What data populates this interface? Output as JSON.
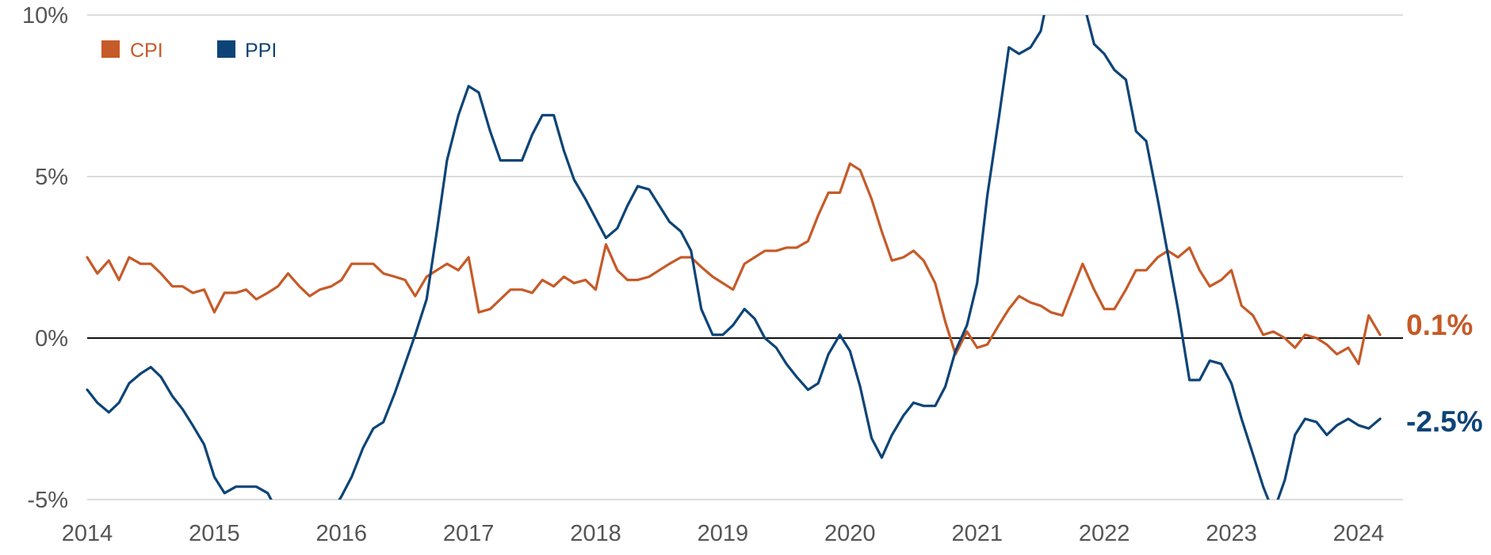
{
  "chart_data": {
    "type": "line",
    "title": "",
    "xlabel": "",
    "ylabel": "",
    "xlim": [
      2014,
      2024.35
    ],
    "ylim": [
      -5,
      10
    ],
    "grid": true,
    "legend_position": "top-left",
    "x_ticks": [
      {
        "value": 2014,
        "label": "2014"
      },
      {
        "value": 2015,
        "label": "2015"
      },
      {
        "value": 2016,
        "label": "2016"
      },
      {
        "value": 2017,
        "label": "2017"
      },
      {
        "value": 2018,
        "label": "2018"
      },
      {
        "value": 2019,
        "label": "2019"
      },
      {
        "value": 2020,
        "label": "2020"
      },
      {
        "value": 2021,
        "label": "2021"
      },
      {
        "value": 2022,
        "label": "2022"
      },
      {
        "value": 2023,
        "label": "2023"
      },
      {
        "value": 2024,
        "label": "2024"
      }
    ],
    "y_ticks": [
      {
        "value": 10,
        "label": "10%"
      },
      {
        "value": 5,
        "label": "5%"
      },
      {
        "value": 0,
        "label": "0%"
      },
      {
        "value": -5,
        "label": "-5%"
      }
    ],
    "series": [
      {
        "name": "CPI",
        "color": "#C65A28",
        "end_label": "0.1%",
        "points": [
          [
            2014.0,
            2.5
          ],
          [
            2014.08,
            2.0
          ],
          [
            2014.17,
            2.4
          ],
          [
            2014.25,
            1.8
          ],
          [
            2014.33,
            2.5
          ],
          [
            2014.42,
            2.3
          ],
          [
            2014.5,
            2.3
          ],
          [
            2014.58,
            2.0
          ],
          [
            2014.67,
            1.6
          ],
          [
            2014.75,
            1.6
          ],
          [
            2014.83,
            1.4
          ],
          [
            2014.92,
            1.5
          ],
          [
            2015.0,
            0.8
          ],
          [
            2015.08,
            1.4
          ],
          [
            2015.17,
            1.4
          ],
          [
            2015.25,
            1.5
          ],
          [
            2015.33,
            1.2
          ],
          [
            2015.42,
            1.4
          ],
          [
            2015.5,
            1.6
          ],
          [
            2015.58,
            2.0
          ],
          [
            2015.67,
            1.6
          ],
          [
            2015.75,
            1.3
          ],
          [
            2015.83,
            1.5
          ],
          [
            2015.92,
            1.6
          ],
          [
            2016.0,
            1.8
          ],
          [
            2016.08,
            2.3
          ],
          [
            2016.17,
            2.3
          ],
          [
            2016.25,
            2.3
          ],
          [
            2016.33,
            2.0
          ],
          [
            2016.42,
            1.9
          ],
          [
            2016.5,
            1.8
          ],
          [
            2016.58,
            1.3
          ],
          [
            2016.67,
            1.9
          ],
          [
            2016.75,
            2.1
          ],
          [
            2016.83,
            2.3
          ],
          [
            2016.92,
            2.1
          ],
          [
            2017.0,
            2.5
          ],
          [
            2017.08,
            0.8
          ],
          [
            2017.17,
            0.9
          ],
          [
            2017.25,
            1.2
          ],
          [
            2017.33,
            1.5
          ],
          [
            2017.42,
            1.5
          ],
          [
            2017.5,
            1.4
          ],
          [
            2017.58,
            1.8
          ],
          [
            2017.67,
            1.6
          ],
          [
            2017.75,
            1.9
          ],
          [
            2017.83,
            1.7
          ],
          [
            2017.92,
            1.8
          ],
          [
            2018.0,
            1.5
          ],
          [
            2018.08,
            2.9
          ],
          [
            2018.17,
            2.1
          ],
          [
            2018.25,
            1.8
          ],
          [
            2018.33,
            1.8
          ],
          [
            2018.42,
            1.9
          ],
          [
            2018.5,
            2.1
          ],
          [
            2018.58,
            2.3
          ],
          [
            2018.67,
            2.5
          ],
          [
            2018.75,
            2.5
          ],
          [
            2018.83,
            2.2
          ],
          [
            2018.92,
            1.9
          ],
          [
            2019.0,
            1.7
          ],
          [
            2019.08,
            1.5
          ],
          [
            2019.17,
            2.3
          ],
          [
            2019.25,
            2.5
          ],
          [
            2019.33,
            2.7
          ],
          [
            2019.42,
            2.7
          ],
          [
            2019.5,
            2.8
          ],
          [
            2019.58,
            2.8
          ],
          [
            2019.67,
            3.0
          ],
          [
            2019.75,
            3.8
          ],
          [
            2019.83,
            4.5
          ],
          [
            2019.92,
            4.5
          ],
          [
            2020.0,
            5.4
          ],
          [
            2020.08,
            5.2
          ],
          [
            2020.17,
            4.3
          ],
          [
            2020.25,
            3.3
          ],
          [
            2020.33,
            2.4
          ],
          [
            2020.42,
            2.5
          ],
          [
            2020.5,
            2.7
          ],
          [
            2020.58,
            2.4
          ],
          [
            2020.67,
            1.7
          ],
          [
            2020.75,
            0.5
          ],
          [
            2020.83,
            -0.5
          ],
          [
            2020.92,
            0.2
          ],
          [
            2021.0,
            -0.3
          ],
          [
            2021.08,
            -0.2
          ],
          [
            2021.17,
            0.4
          ],
          [
            2021.25,
            0.9
          ],
          [
            2021.33,
            1.3
          ],
          [
            2021.42,
            1.1
          ],
          [
            2021.5,
            1.0
          ],
          [
            2021.58,
            0.8
          ],
          [
            2021.67,
            0.7
          ],
          [
            2021.75,
            1.5
          ],
          [
            2021.83,
            2.3
          ],
          [
            2021.92,
            1.5
          ],
          [
            2022.0,
            0.9
          ],
          [
            2022.08,
            0.9
          ],
          [
            2022.17,
            1.5
          ],
          [
            2022.25,
            2.1
          ],
          [
            2022.33,
            2.1
          ],
          [
            2022.42,
            2.5
          ],
          [
            2022.5,
            2.7
          ],
          [
            2022.58,
            2.5
          ],
          [
            2022.67,
            2.8
          ],
          [
            2022.75,
            2.1
          ],
          [
            2022.83,
            1.6
          ],
          [
            2022.92,
            1.8
          ],
          [
            2023.0,
            2.1
          ],
          [
            2023.08,
            1.0
          ],
          [
            2023.17,
            0.7
          ],
          [
            2023.25,
            0.1
          ],
          [
            2023.33,
            0.2
          ],
          [
            2023.42,
            0.0
          ],
          [
            2023.5,
            -0.3
          ],
          [
            2023.58,
            0.1
          ],
          [
            2023.67,
            0.0
          ],
          [
            2023.75,
            -0.2
          ],
          [
            2023.83,
            -0.5
          ],
          [
            2023.92,
            -0.3
          ],
          [
            2024.0,
            -0.8
          ],
          [
            2024.08,
            0.7
          ],
          [
            2024.17,
            0.1
          ]
        ]
      },
      {
        "name": "PPI",
        "color": "#0D4477",
        "end_label": "-2.5%",
        "points": [
          [
            2014.0,
            -1.6
          ],
          [
            2014.08,
            -2.0
          ],
          [
            2014.17,
            -2.3
          ],
          [
            2014.25,
            -2.0
          ],
          [
            2014.33,
            -1.4
          ],
          [
            2014.42,
            -1.1
          ],
          [
            2014.5,
            -0.9
          ],
          [
            2014.58,
            -1.2
          ],
          [
            2014.67,
            -1.8
          ],
          [
            2014.75,
            -2.2
          ],
          [
            2014.83,
            -2.7
          ],
          [
            2014.92,
            -3.3
          ],
          [
            2015.0,
            -4.3
          ],
          [
            2015.08,
            -4.8
          ],
          [
            2015.17,
            -4.6
          ],
          [
            2015.25,
            -4.6
          ],
          [
            2015.33,
            -4.6
          ],
          [
            2015.42,
            -4.8
          ],
          [
            2015.5,
            -5.4
          ],
          [
            2015.58,
            -5.9
          ],
          [
            2015.67,
            -5.9
          ],
          [
            2015.75,
            -5.9
          ],
          [
            2015.83,
            -5.9
          ],
          [
            2015.92,
            -5.4
          ],
          [
            2016.0,
            -4.9
          ],
          [
            2016.08,
            -4.3
          ],
          [
            2016.17,
            -3.4
          ],
          [
            2016.25,
            -2.8
          ],
          [
            2016.33,
            -2.6
          ],
          [
            2016.42,
            -1.7
          ],
          [
            2016.5,
            -0.8
          ],
          [
            2016.58,
            0.1
          ],
          [
            2016.67,
            1.2
          ],
          [
            2016.75,
            3.3
          ],
          [
            2016.83,
            5.5
          ],
          [
            2016.92,
            6.9
          ],
          [
            2017.0,
            7.8
          ],
          [
            2017.08,
            7.6
          ],
          [
            2017.17,
            6.4
          ],
          [
            2017.25,
            5.5
          ],
          [
            2017.33,
            5.5
          ],
          [
            2017.42,
            5.5
          ],
          [
            2017.5,
            6.3
          ],
          [
            2017.58,
            6.9
          ],
          [
            2017.67,
            6.9
          ],
          [
            2017.75,
            5.8
          ],
          [
            2017.83,
            4.9
          ],
          [
            2017.92,
            4.3
          ],
          [
            2018.0,
            3.7
          ],
          [
            2018.08,
            3.1
          ],
          [
            2018.17,
            3.4
          ],
          [
            2018.25,
            4.1
          ],
          [
            2018.33,
            4.7
          ],
          [
            2018.42,
            4.6
          ],
          [
            2018.5,
            4.1
          ],
          [
            2018.58,
            3.6
          ],
          [
            2018.67,
            3.3
          ],
          [
            2018.75,
            2.7
          ],
          [
            2018.83,
            0.9
          ],
          [
            2018.92,
            0.1
          ],
          [
            2019.0,
            0.1
          ],
          [
            2019.08,
            0.4
          ],
          [
            2019.17,
            0.9
          ],
          [
            2019.25,
            0.6
          ],
          [
            2019.33,
            0.0
          ],
          [
            2019.42,
            -0.3
          ],
          [
            2019.5,
            -0.8
          ],
          [
            2019.58,
            -1.2
          ],
          [
            2019.67,
            -1.6
          ],
          [
            2019.75,
            -1.4
          ],
          [
            2019.83,
            -0.5
          ],
          [
            2019.92,
            0.1
          ],
          [
            2020.0,
            -0.4
          ],
          [
            2020.08,
            -1.5
          ],
          [
            2020.17,
            -3.1
          ],
          [
            2020.25,
            -3.7
          ],
          [
            2020.33,
            -3.0
          ],
          [
            2020.42,
            -2.4
          ],
          [
            2020.5,
            -2.0
          ],
          [
            2020.58,
            -2.1
          ],
          [
            2020.67,
            -2.1
          ],
          [
            2020.75,
            -1.5
          ],
          [
            2020.83,
            -0.4
          ],
          [
            2020.92,
            0.4
          ],
          [
            2021.0,
            1.7
          ],
          [
            2021.08,
            4.4
          ],
          [
            2021.17,
            6.8
          ],
          [
            2021.25,
            9.0
          ],
          [
            2021.33,
            8.8
          ],
          [
            2021.42,
            9.0
          ],
          [
            2021.5,
            9.5
          ],
          [
            2021.58,
            11.0
          ],
          [
            2021.67,
            11.5
          ],
          [
            2021.75,
            11.0
          ],
          [
            2021.83,
            10.5
          ],
          [
            2021.92,
            9.1
          ],
          [
            2022.0,
            8.8
          ],
          [
            2022.08,
            8.3
          ],
          [
            2022.17,
            8.0
          ],
          [
            2022.25,
            6.4
          ],
          [
            2022.33,
            6.1
          ],
          [
            2022.42,
            4.3
          ],
          [
            2022.5,
            2.6
          ],
          [
            2022.58,
            0.9
          ],
          [
            2022.67,
            -1.3
          ],
          [
            2022.75,
            -1.3
          ],
          [
            2022.83,
            -0.7
          ],
          [
            2022.92,
            -0.8
          ],
          [
            2023.0,
            -1.4
          ],
          [
            2023.08,
            -2.5
          ],
          [
            2023.17,
            -3.6
          ],
          [
            2023.25,
            -4.6
          ],
          [
            2023.33,
            -5.4
          ],
          [
            2023.42,
            -4.4
          ],
          [
            2023.5,
            -3.0
          ],
          [
            2023.58,
            -2.5
          ],
          [
            2023.67,
            -2.6
          ],
          [
            2023.75,
            -3.0
          ],
          [
            2023.83,
            -2.7
          ],
          [
            2023.92,
            -2.5
          ],
          [
            2024.0,
            -2.7
          ],
          [
            2024.08,
            -2.8
          ],
          [
            2024.17,
            -2.5
          ]
        ]
      }
    ]
  }
}
